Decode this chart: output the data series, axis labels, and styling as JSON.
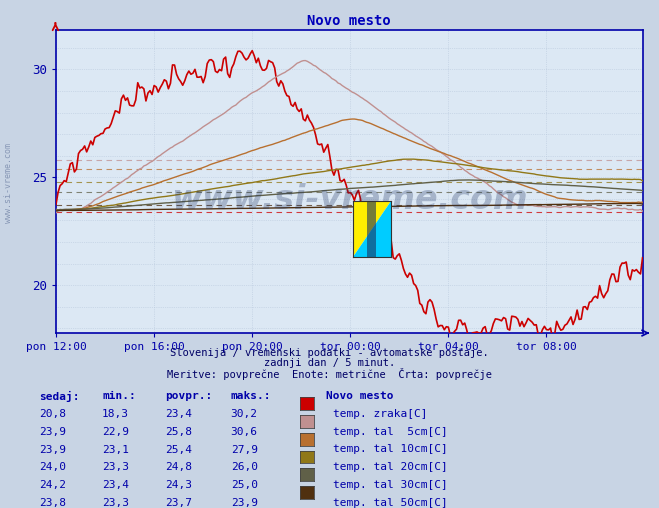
{
  "title": "Novo mesto",
  "bg_color": "#c8d4e4",
  "plot_bg_color": "#dce8f4",
  "grid_color": "#b8c8dc",
  "xlabel_color": "#0000aa",
  "title_color": "#0000bb",
  "xticklabels": [
    "pon 12:00",
    "pon 16:00",
    "pon 20:00",
    "tor 00:00",
    "tor 04:00",
    "tor 08:00"
  ],
  "xtick_positions": [
    0,
    48,
    96,
    144,
    192,
    240
  ],
  "total_points": 288,
  "ylim": [
    17.8,
    31.8
  ],
  "yticks": [
    20,
    25,
    30
  ],
  "subtitle1": "Slovenija / vremenski podatki - avtomatske postaje.",
  "subtitle2": "zadnji dan / 5 minut.",
  "subtitle3": "Meritve: povprečne  Enote: metrične  Črta: povprečje",
  "watermark": "www.si-vreme.com",
  "series": [
    {
      "name": "temp. zraka[C]",
      "color": "#cc0000",
      "lw": 1.2,
      "avg": 23.4
    },
    {
      "name": "temp. tal  5cm[C]",
      "color": "#c09090",
      "lw": 1.0,
      "avg": 25.8
    },
    {
      "name": "temp. tal 10cm[C]",
      "color": "#b87030",
      "lw": 1.0,
      "avg": 25.4
    },
    {
      "name": "temp. tal 20cm[C]",
      "color": "#907818",
      "lw": 1.0,
      "avg": 24.8
    },
    {
      "name": "temp. tal 30cm[C]",
      "color": "#606048",
      "lw": 1.0,
      "avg": 24.3
    },
    {
      "name": "temp. tal 50cm[C]",
      "color": "#503010",
      "lw": 1.0,
      "avg": 23.7
    }
  ],
  "legend_colors_swatch": [
    "#cc0000",
    "#c09090",
    "#b87030",
    "#907818",
    "#606048",
    "#503010"
  ],
  "table_rows": [
    [
      20.8,
      18.3,
      23.4,
      30.2
    ],
    [
      23.9,
      22.9,
      25.8,
      30.6
    ],
    [
      23.9,
      23.1,
      25.4,
      27.9
    ],
    [
      24.0,
      23.3,
      24.8,
      26.0
    ],
    [
      24.2,
      23.4,
      24.3,
      25.0
    ],
    [
      23.8,
      23.3,
      23.7,
      23.9
    ]
  ]
}
